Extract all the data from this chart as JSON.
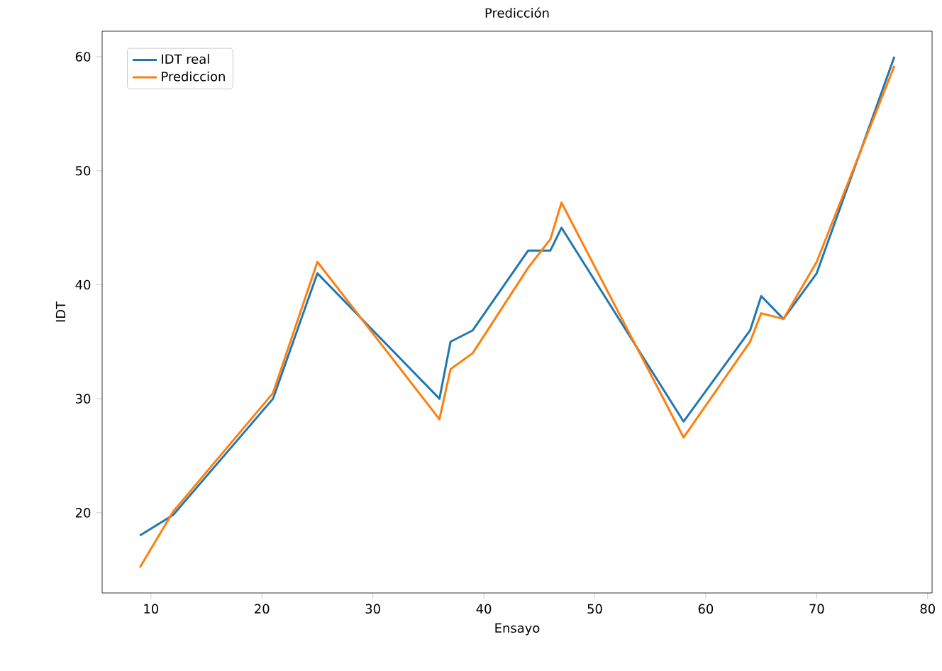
{
  "chart_data": {
    "type": "line",
    "title": "Predicción",
    "xlabel": "Ensayo",
    "ylabel": "IDT",
    "x": [
      9,
      12,
      21,
      25,
      36,
      37,
      39,
      44,
      46,
      47,
      58,
      64,
      65,
      67,
      70,
      77
    ],
    "series": [
      {
        "name": "IDT real",
        "color": "#1f77b4",
        "values": [
          18,
          19.8,
          30,
          41,
          30,
          35,
          36,
          43,
          43,
          45,
          28,
          36,
          39,
          37,
          41,
          60
        ]
      },
      {
        "name": "Prediccion",
        "color": "#ff7f0e",
        "values": [
          15.2,
          20.1,
          30.5,
          42,
          28.2,
          32.6,
          34,
          41.5,
          44,
          47.2,
          26.6,
          35,
          37.5,
          37,
          42,
          59.2
        ]
      }
    ],
    "xlim": [
      5.6,
      80.4
    ],
    "ylim": [
      12.96,
      62.24
    ],
    "xticks": [
      10,
      20,
      30,
      40,
      50,
      60,
      70,
      80
    ],
    "yticks": [
      20,
      30,
      40,
      50,
      60
    ],
    "legend": "top left",
    "grid": false,
    "marker": "none",
    "line_style": "solid"
  }
}
